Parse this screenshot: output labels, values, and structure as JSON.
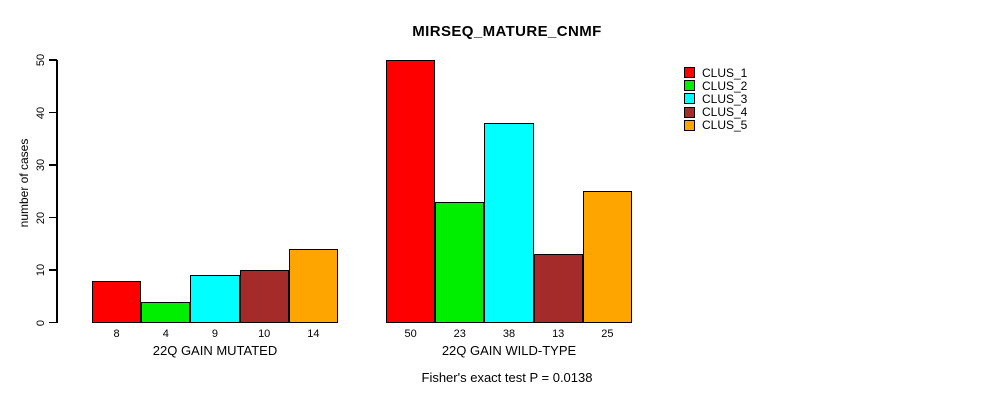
{
  "chart_data": {
    "type": "bar",
    "title": "MIRSEQ_MATURE_CNMF",
    "ylabel": "number of cases",
    "ylim": [
      0,
      50
    ],
    "yticks": [
      0,
      10,
      20,
      30,
      40,
      50
    ],
    "grid": false,
    "legend_position": "right",
    "categories": [
      "22Q GAIN MUTATED",
      "22Q GAIN WILD-TYPE"
    ],
    "series": [
      {
        "name": "CLUS_1",
        "color": "#FF0000",
        "values": [
          8,
          50
        ]
      },
      {
        "name": "CLUS_2",
        "color": "#00EE00",
        "values": [
          4,
          23
        ]
      },
      {
        "name": "CLUS_3",
        "color": "#00FFFF",
        "values": [
          9,
          38
        ]
      },
      {
        "name": "CLUS_4",
        "color": "#A52A2A",
        "values": [
          10,
          13
        ]
      },
      {
        "name": "CLUS_5",
        "color": "#FFA500",
        "values": [
          14,
          25
        ]
      }
    ],
    "bar_value_labels": [
      [
        "8",
        "4",
        "9",
        "10",
        "14"
      ],
      [
        "50",
        "23",
        "38",
        "13",
        "25"
      ]
    ],
    "annotation": "Fisher's exact test P = 0.0138",
    "background_color": "#FFFFFF",
    "text_color": "#000000"
  }
}
